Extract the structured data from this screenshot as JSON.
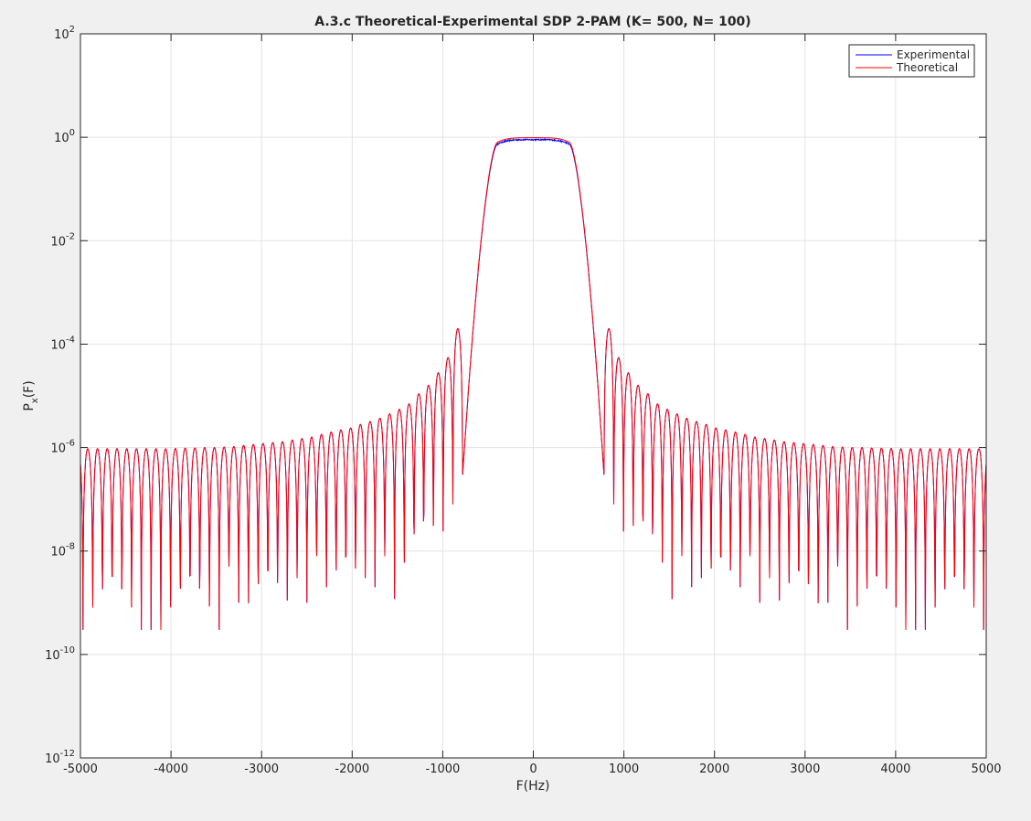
{
  "figure": {
    "background": "#f0f0f0",
    "plot_background": "#ffffff"
  },
  "chart_data": {
    "type": "line",
    "title": "A.3.c Theoretical-Experimental SDP 2-PAM (K= 500, N= 100)",
    "xlabel": "F(Hz)",
    "ylabel_main": "P",
    "ylabel_sub": "x",
    "ylabel_suffix": "(F)",
    "xlim": [
      -5000,
      5000
    ],
    "ylim": [
      1e-12,
      100
    ],
    "yscale": "log",
    "grid": true,
    "legend_position": "top-right",
    "x_ticks": [
      -5000,
      -4000,
      -3000,
      -2000,
      -1000,
      0,
      1000,
      2000,
      3000,
      4000,
      5000
    ],
    "x_tick_labels": [
      "-5000",
      "-4000",
      "-3000",
      "-2000",
      "-1000",
      "0",
      "1000",
      "2000",
      "3000",
      "4000",
      "5000"
    ],
    "y_ticks": [
      {
        "value": 100,
        "base": "10",
        "exp": "2"
      },
      {
        "value": 1,
        "base": "10",
        "exp": "0"
      },
      {
        "value": 0.01,
        "base": "10",
        "exp": "-2"
      },
      {
        "value": 0.0001,
        "base": "10",
        "exp": "-4"
      },
      {
        "value": 1e-06,
        "base": "10",
        "exp": "-6"
      },
      {
        "value": 1e-08,
        "base": "10",
        "exp": "-8"
      },
      {
        "value": 1e-10,
        "base": "10",
        "exp": "-10"
      },
      {
        "value": 1e-12,
        "base": "10",
        "exp": "-12"
      }
    ],
    "series": [
      {
        "name": "Experimental",
        "color": "#0000ff",
        "sidelobe_peaks": [
          0.0002,
          5.5e-05,
          2.8e-05,
          1.6e-05,
          1.1e-05,
          7e-06,
          5.5e-06,
          4.5e-06,
          3.7e-06,
          3.2e-06,
          2.8e-06,
          2.4e-06,
          2.2e-06,
          2e-06,
          1.8e-06,
          1.6e-06,
          1.5e-06,
          1.4e-06,
          1.3e-06,
          1.25e-06,
          1.2e-06,
          1.15e-06,
          1.1e-06,
          1.05e-06,
          1.02e-06,
          1e-06,
          1e-06,
          9.8e-07,
          9.7e-07,
          9.6e-07,
          9.5e-07,
          9.5e-07,
          9.5e-07,
          9.5e-07,
          9.5e-07,
          9.5e-07,
          9.5e-07,
          9.5e-07,
          9.5e-07
        ],
        "passband_level": 0.9,
        "passband_noise": 0.06,
        "null_depths": [
          3e-07,
          8e-08,
          1e-10,
          3e-09,
          4e-09,
          2e-09,
          5e-11,
          3e-09,
          8e-09,
          2e-09,
          3e-09,
          2e-09,
          1e-09,
          2e-09,
          8e-09,
          2e-11,
          1e-09,
          3e-09,
          1e-11,
          1e-11,
          1e-11,
          5e-11,
          1e-09,
          8e-09,
          5e-09,
          3e-10,
          3e-10,
          3e-10,
          3e-10,
          3e-10,
          3e-10,
          3e-10,
          3e-10,
          3e-10,
          3e-10,
          3e-10,
          3e-10,
          3e-10
        ]
      },
      {
        "name": "Theoretical",
        "color": "#ff0000",
        "sidelobe_peaks": [
          0.0002,
          5.5e-05,
          2.8e-05,
          1.6e-05,
          1.1e-05,
          7e-06,
          5.5e-06,
          4.5e-06,
          3.7e-06,
          3.2e-06,
          2.8e-06,
          2.4e-06,
          2.2e-06,
          2e-06,
          1.8e-06,
          1.6e-06,
          1.5e-06,
          1.4e-06,
          1.3e-06,
          1.25e-06,
          1.2e-06,
          1.15e-06,
          1.1e-06,
          1.05e-06,
          1.02e-06,
          1e-06,
          1e-06,
          9.8e-07,
          9.7e-07,
          9.6e-07,
          9.5e-07,
          9.5e-07,
          9.5e-07,
          9.5e-07,
          9.5e-07,
          9.5e-07,
          9.5e-07,
          9.5e-07,
          9.5e-07
        ],
        "passband_level": 0.98,
        "passband_noise": 0,
        "null_depths": [
          3e-07,
          8e-08,
          1e-10,
          3e-09,
          4e-09,
          2e-09,
          5e-11,
          3e-09,
          8e-09,
          2e-09,
          3e-09,
          2e-09,
          1e-09,
          2e-09,
          8e-09,
          2e-11,
          1e-09,
          3e-09,
          1e-11,
          1e-11,
          1e-11,
          5e-11,
          1e-09,
          8e-09,
          5e-09,
          3e-10,
          3e-10,
          3e-10,
          3e-10,
          3e-10,
          3e-10,
          3e-10,
          3e-10,
          3e-10,
          3e-10,
          3e-10,
          3e-10,
          3e-10
        ]
      }
    ],
    "passband_edge_hz": 400,
    "transition_end_hz": 780,
    "sidelobe_period_hz": 107.5
  },
  "legend": {
    "items": [
      {
        "label": "Experimental",
        "color": "#0000ff"
      },
      {
        "label": "Theoretical",
        "color": "#ff0000"
      }
    ]
  }
}
